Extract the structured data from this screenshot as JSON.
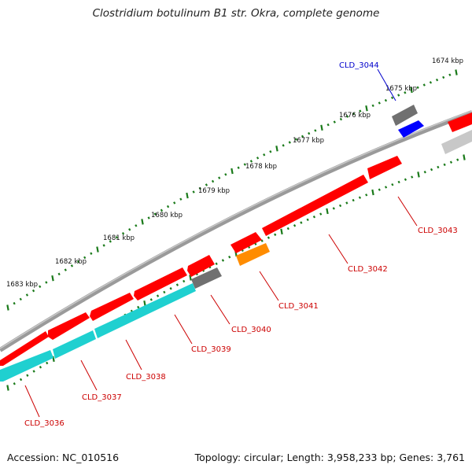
{
  "title": "Clostridium botulinum B1 str. Okra, complete genome",
  "footer": {
    "accession": "Accession: NC_010516",
    "summary": "Topology: circular; Length: 3,958,233 bp; Genes: 3,761"
  },
  "ticks": [
    "1674 kbp",
    "1675 kbp",
    "1676 kbp",
    "1677 kbp",
    "1678 kbp",
    "1679 kbp",
    "1680 kbp",
    "1681 kbp",
    "1682 kbp",
    "1683 kbp"
  ],
  "genes": [
    {
      "label": "CLD_3044",
      "color": "#0000cc"
    },
    {
      "label": "CLD_3043",
      "color": "#cc0000"
    },
    {
      "label": "CLD_3042",
      "color": "#cc0000"
    },
    {
      "label": "CLD_3041",
      "color": "#cc0000"
    },
    {
      "label": "CLD_3040",
      "color": "#cc0000"
    },
    {
      "label": "CLD_3039",
      "color": "#cc0000"
    },
    {
      "label": "CLD_3038",
      "color": "#cc0000"
    },
    {
      "label": "CLD_3037",
      "color": "#cc0000"
    },
    {
      "label": "CLD_3036",
      "color": "#cc0000"
    }
  ],
  "colors": {
    "red_gene": "#ff0000",
    "cyan_gene": "#1fd0d0",
    "orange_gene": "#ff8c00",
    "blue_gene": "#0000ff",
    "grey_gene": "#707070",
    "light_grey_gene": "#c8c8c8",
    "backbone": "#808080",
    "tick": "#1a7a1a"
  }
}
